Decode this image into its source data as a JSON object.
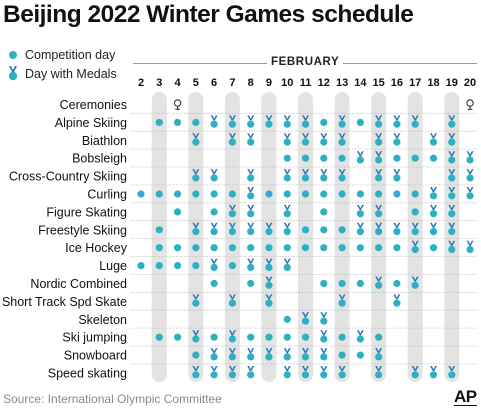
{
  "title": "Beijing 2022 Winter Games schedule",
  "legend": {
    "competition_label": "Competition day",
    "medal_label": "Day with Medals"
  },
  "month": "FEBRUARY",
  "source": "Source: International Olympic Committee",
  "credit": "AP",
  "colors": {
    "dot": "#2fb0c0",
    "medal": "#2a78b8",
    "medal_ribbon": "#2a78b8",
    "column_shade": "#e3e3e3",
    "gridline": "#b8b8b8",
    "text": "#111111"
  },
  "chart_data": {
    "type": "table",
    "title": "Beijing 2022 Winter Games schedule",
    "days": [
      2,
      3,
      4,
      5,
      6,
      7,
      8,
      9,
      10,
      11,
      12,
      13,
      14,
      15,
      16,
      17,
      18,
      19,
      20
    ],
    "shaded_days": [
      3,
      5,
      7,
      9,
      11,
      13,
      15,
      17,
      19
    ],
    "legend": {
      "c": "Competition day",
      "m": "Day with Medals",
      "o": "Ceremony"
    },
    "rows": [
      {
        "sport": "Ceremonies",
        "marks": [
          "",
          "",
          "o",
          "",
          "",
          "",
          "",
          "",
          "",
          "",
          "",
          "",
          "",
          "",
          "",
          "",
          "",
          "",
          "o"
        ]
      },
      {
        "sport": "Alpine Skiing",
        "marks": [
          "",
          "c",
          "c",
          "c",
          "m",
          "m",
          "m",
          "m",
          "m",
          "m",
          "c",
          "m",
          "c",
          "m",
          "m",
          "m",
          "",
          "m",
          ""
        ]
      },
      {
        "sport": "Biathlon",
        "marks": [
          "",
          "",
          "",
          "m",
          "",
          "m",
          "m",
          "",
          "m",
          "m",
          "m",
          "m",
          "",
          "m",
          "m",
          "",
          "m",
          "m",
          ""
        ]
      },
      {
        "sport": "Bobsleigh",
        "marks": [
          "",
          "",
          "",
          "",
          "",
          "",
          "",
          "",
          "c",
          "c",
          "c",
          "c",
          "m",
          "m",
          "c",
          "c",
          "c",
          "m",
          "m"
        ]
      },
      {
        "sport": "Cross-Country Skiing",
        "marks": [
          "",
          "",
          "",
          "m",
          "m",
          "",
          "m",
          "",
          "m",
          "m",
          "m",
          "m",
          "",
          "m",
          "m",
          "",
          "",
          "m",
          "m"
        ]
      },
      {
        "sport": "Curling",
        "marks": [
          "c",
          "c",
          "c",
          "c",
          "c",
          "c",
          "m",
          "c",
          "c",
          "c",
          "c",
          "c",
          "c",
          "c",
          "c",
          "c",
          "m",
          "m",
          "m"
        ]
      },
      {
        "sport": "Figure Skating",
        "marks": [
          "",
          "",
          "c",
          "",
          "c",
          "m",
          "m",
          "",
          "m",
          "",
          "c",
          "",
          "m",
          "m",
          "",
          "c",
          "m",
          "m",
          ""
        ]
      },
      {
        "sport": "Freestyle Skiing",
        "marks": [
          "",
          "c",
          "",
          "m",
          "m",
          "m",
          "m",
          "m",
          "m",
          "c",
          "c",
          "c",
          "m",
          "m",
          "m",
          "m",
          "m",
          "m",
          ""
        ]
      },
      {
        "sport": "Ice Hockey",
        "marks": [
          "",
          "c",
          "c",
          "c",
          "c",
          "c",
          "c",
          "c",
          "c",
          "c",
          "c",
          "c",
          "c",
          "c",
          "c",
          "m",
          "c",
          "m",
          "m"
        ]
      },
      {
        "sport": "Luge",
        "marks": [
          "c",
          "c",
          "c",
          "c",
          "m",
          "c",
          "m",
          "m",
          "m",
          "",
          "",
          "",
          "",
          "",
          "",
          "",
          "",
          "",
          ""
        ]
      },
      {
        "sport": "Nordic Combined",
        "marks": [
          "",
          "",
          "",
          "",
          "c",
          "",
          "c",
          "m",
          "",
          "",
          "c",
          "c",
          "c",
          "m",
          "c",
          "m",
          "",
          "",
          ""
        ]
      },
      {
        "sport": "Short Track Spd Skate",
        "marks": [
          "",
          "",
          "",
          "m",
          "",
          "m",
          "",
          "m",
          "",
          "",
          "",
          "m",
          "",
          "",
          "m",
          "",
          "",
          "",
          ""
        ]
      },
      {
        "sport": "Skeleton",
        "marks": [
          "",
          "",
          "",
          "",
          "",
          "",
          "",
          "",
          "c",
          "m",
          "m",
          "",
          "",
          "",
          "",
          "",
          "",
          "",
          ""
        ]
      },
      {
        "sport": "Ski jumping",
        "marks": [
          "",
          "c",
          "c",
          "m",
          "c",
          "m",
          "c",
          "c",
          "c",
          "c",
          "m",
          "c",
          "m",
          "c",
          "",
          "",
          "",
          "",
          ""
        ]
      },
      {
        "sport": "Snowboard",
        "marks": [
          "",
          "",
          "",
          "c",
          "m",
          "m",
          "m",
          "m",
          "m",
          "m",
          "m",
          "c",
          "c",
          "m",
          "",
          "",
          "",
          "",
          ""
        ]
      },
      {
        "sport": "Speed skating",
        "marks": [
          "",
          "",
          "",
          "m",
          "m",
          "m",
          "m",
          "",
          "m",
          "m",
          "m",
          "m",
          "",
          "m",
          "",
          "m",
          "m",
          "m",
          ""
        ]
      }
    ]
  }
}
